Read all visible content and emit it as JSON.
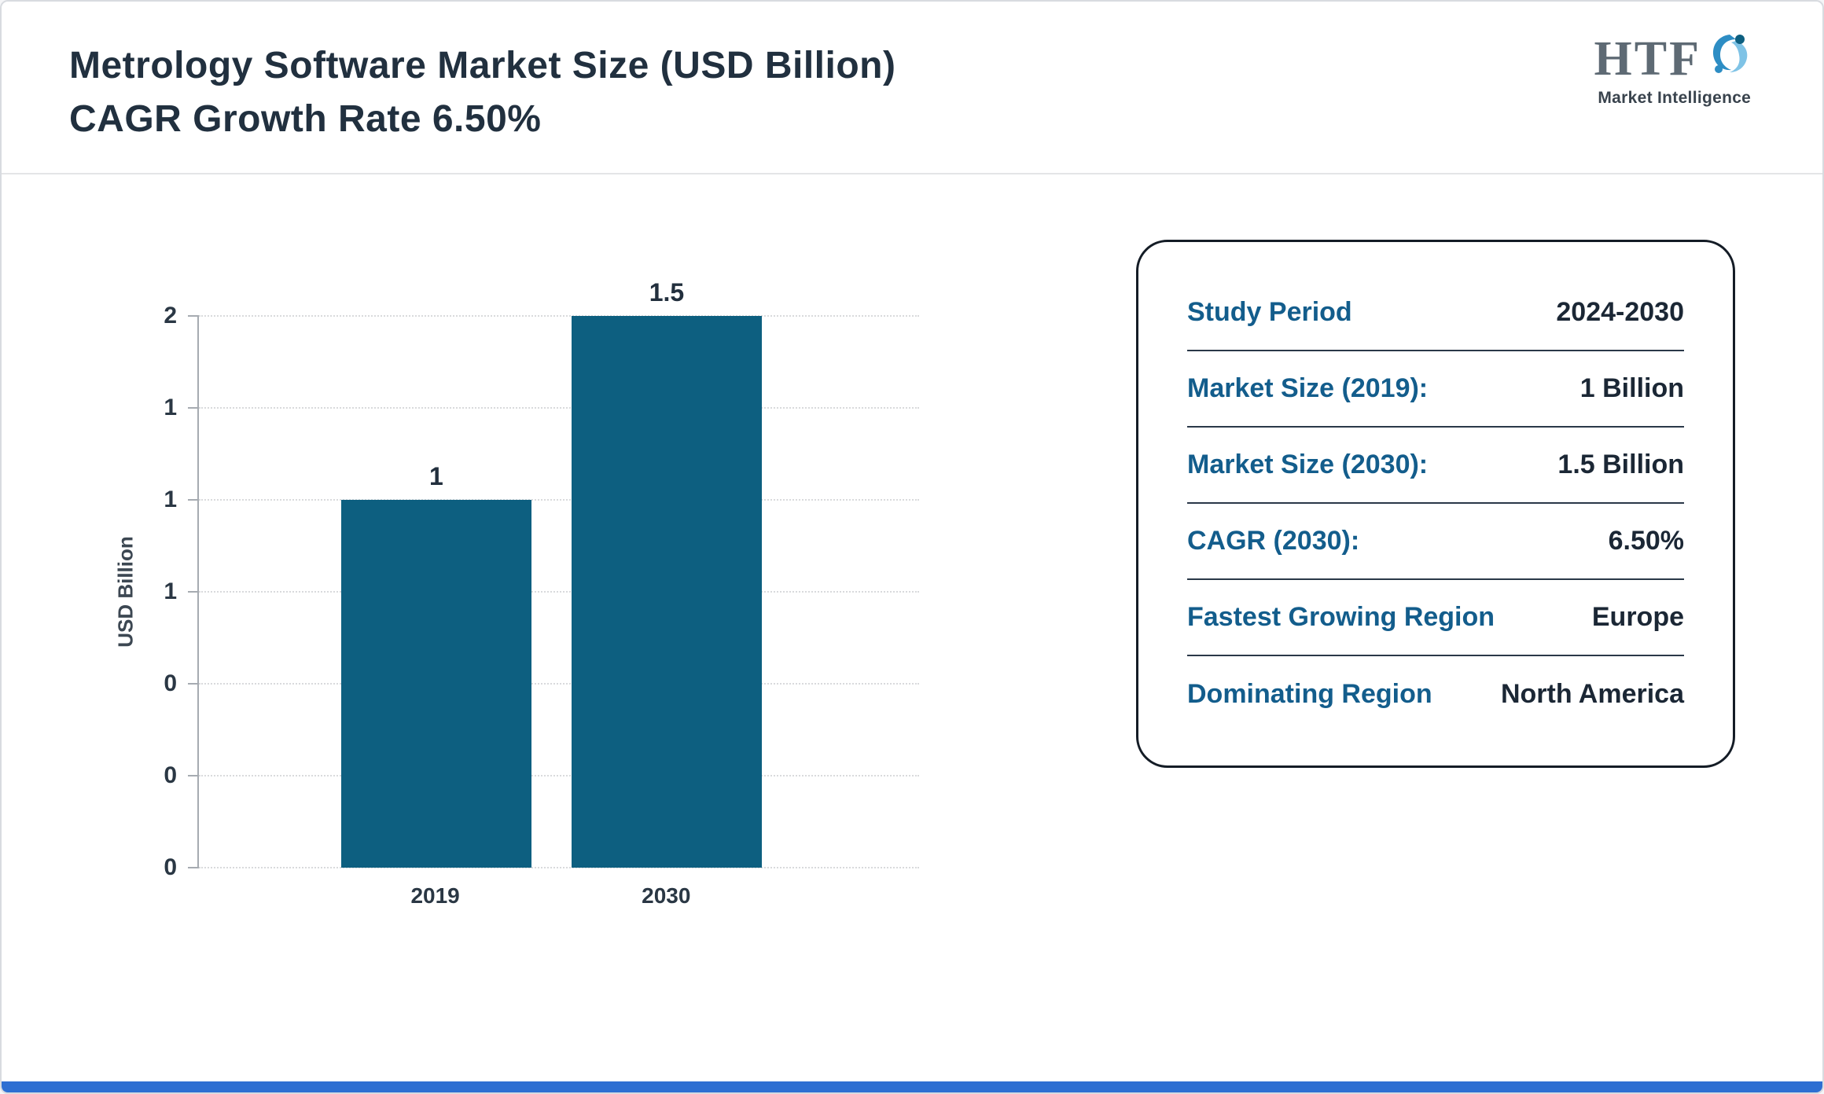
{
  "header": {
    "title_line1": "Metrology Software Market Size (USD Billion)",
    "title_line2": "CAGR Growth Rate 6.50%"
  },
  "logo": {
    "text": "HTF",
    "subtext": "Market Intelligence"
  },
  "chart_data": {
    "type": "bar",
    "title": "Metrology Software Market Size (USD Billion) CAGR Growth Rate 6.50%",
    "categories": [
      "2019",
      "2030"
    ],
    "values": [
      1,
      1.5
    ],
    "bar_labels": [
      "1",
      "1.5"
    ],
    "xlabel": "",
    "ylabel": "USD Billion",
    "ytick_labels_top_to_bottom": [
      "2",
      "1",
      "1",
      "1",
      "0",
      "0",
      "0"
    ],
    "ylim": [
      0,
      1.5
    ],
    "grid": true,
    "legend": false,
    "bar_color": "#0d5f80"
  },
  "info_card": {
    "rows": [
      {
        "label": "Study Period",
        "value": "2024-2030"
      },
      {
        "label": "Market Size (2019):",
        "value": "1 Billion"
      },
      {
        "label": "Market Size (2030):",
        "value": "1.5 Billion"
      },
      {
        "label": "CAGR (2030):",
        "value": "6.50%"
      },
      {
        "label": "Fastest Growing Region",
        "value": "Europe"
      },
      {
        "label": "Dominating Region",
        "value": "North America"
      }
    ]
  },
  "colors": {
    "bar": "#0d5f80",
    "info_label": "#135d8c",
    "info_value": "#1b2735",
    "title_text": "#21303f",
    "bottom_accent": "#2e6fd2"
  }
}
